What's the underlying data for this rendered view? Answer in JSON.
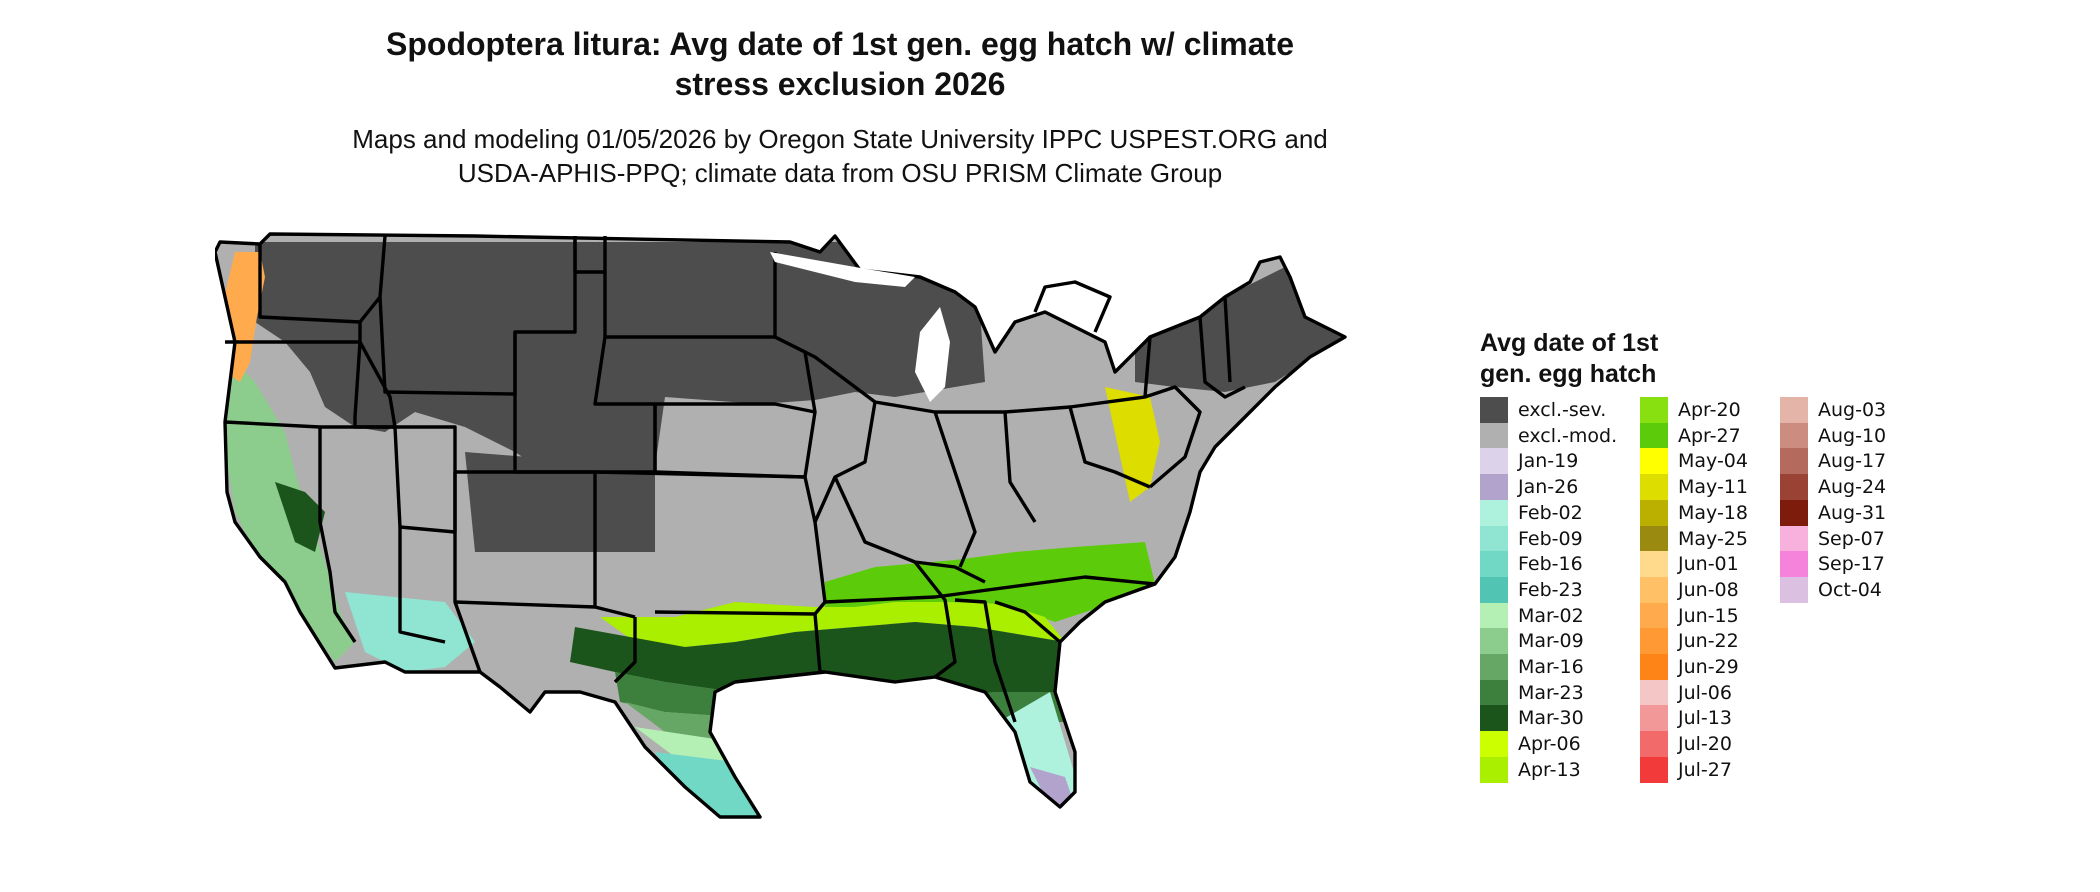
{
  "title_line1": "Spodoptera litura: Avg date of 1st gen. egg hatch w/ climate",
  "title_line2": "stress exclusion 2026",
  "subtitle_line1": "Maps and modeling 01/05/2026 by Oregon State University IPPC USPEST.ORG and",
  "subtitle_line2": "USDA-APHIS-PPQ; climate data from OSU PRISM Climate Group",
  "legend": {
    "title_line1": "Avg date of 1st",
    "title_line2": "gen. egg hatch",
    "columns": [
      [
        {
          "label": "excl.-sev.",
          "color": "#4d4d4d"
        },
        {
          "label": "excl.-mod.",
          "color": "#b0b0b0"
        },
        {
          "label": "Jan-19",
          "color": "#dcd3ea"
        },
        {
          "label": "Jan-26",
          "color": "#b1a3cc"
        },
        {
          "label": "Feb-02",
          "color": "#aef2de"
        },
        {
          "label": "Feb-09",
          "color": "#8fe4d2"
        },
        {
          "label": "Feb-16",
          "color": "#72d8c6"
        },
        {
          "label": "Feb-23",
          "color": "#52c4b4"
        },
        {
          "label": "Mar-02",
          "color": "#b4f0b4"
        },
        {
          "label": "Mar-09",
          "color": "#8ccc8c"
        },
        {
          "label": "Mar-16",
          "color": "#66a766"
        },
        {
          "label": "Mar-23",
          "color": "#3d7f3d"
        },
        {
          "label": "Mar-30",
          "color": "#1b551b"
        },
        {
          "label": "Apr-06",
          "color": "#ccff00"
        },
        {
          "label": "Apr-13",
          "color": "#aaee00"
        }
      ],
      [
        {
          "label": "Apr-20",
          "color": "#88e010"
        },
        {
          "label": "Apr-27",
          "color": "#5ccc0a"
        },
        {
          "label": "May-04",
          "color": "#ffff00"
        },
        {
          "label": "May-11",
          "color": "#dddd00"
        },
        {
          "label": "May-18",
          "color": "#bbb000"
        },
        {
          "label": "May-25",
          "color": "#9a8a10"
        },
        {
          "label": "Jun-01",
          "color": "#ffd98c"
        },
        {
          "label": "Jun-08",
          "color": "#ffc066"
        },
        {
          "label": "Jun-15",
          "color": "#ffaa4c"
        },
        {
          "label": "Jun-22",
          "color": "#ff9933"
        },
        {
          "label": "Jun-29",
          "color": "#ff8418"
        },
        {
          "label": "Jul-06",
          "color": "#f5c6c6"
        },
        {
          "label": "Jul-13",
          "color": "#f39898"
        },
        {
          "label": "Jul-20",
          "color": "#f36a6a"
        },
        {
          "label": "Jul-27",
          "color": "#f23a3a"
        }
      ],
      [
        {
          "label": "Aug-03",
          "color": "#e4b4a8"
        },
        {
          "label": "Aug-10",
          "color": "#cc8c80"
        },
        {
          "label": "Aug-17",
          "color": "#b46a5c"
        },
        {
          "label": "Aug-24",
          "color": "#9a4234"
        },
        {
          "label": "Aug-31",
          "color": "#7d1c0c"
        },
        {
          "label": "Sep-07",
          "color": "#f8b0dc"
        },
        {
          "label": "Sep-17",
          "color": "#f583dc"
        },
        {
          "label": "Oct-04",
          "color": "#dcc0e2"
        }
      ]
    ]
  }
}
